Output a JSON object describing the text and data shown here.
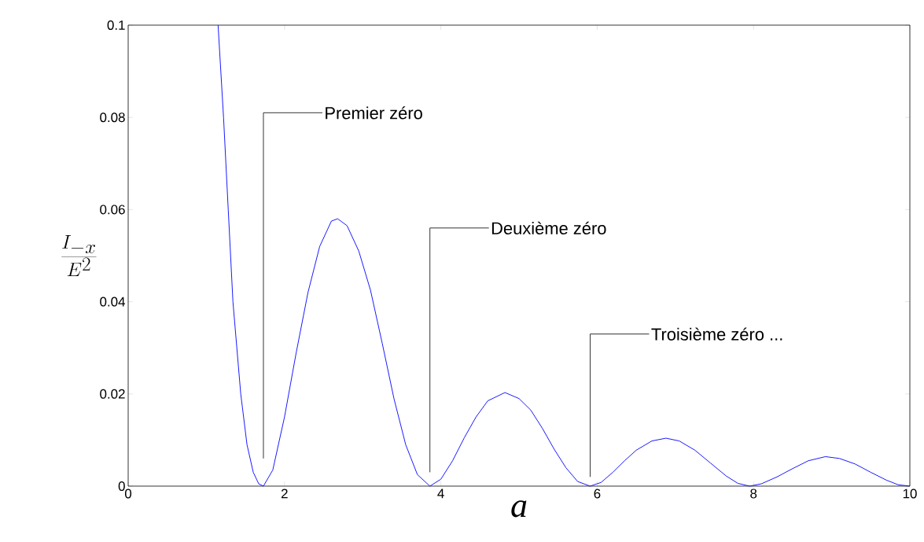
{
  "chart_data": {
    "type": "line",
    "xlabel": "a",
    "ylabel": "\\frac{I_{-x}}{E^{2}}",
    "x": [
      1.15,
      1.22,
      1.28,
      1.34,
      1.44,
      1.52,
      1.6,
      1.67,
      1.73,
      1.85,
      2.0,
      2.15,
      2.3,
      2.45,
      2.6,
      2.68,
      2.8,
      2.95,
      3.1,
      3.25,
      3.4,
      3.55,
      3.7,
      3.86,
      4.0,
      4.15,
      4.3,
      4.45,
      4.6,
      4.82,
      5.0,
      5.15,
      5.3,
      5.45,
      5.6,
      5.75,
      5.91,
      6.05,
      6.2,
      6.35,
      6.5,
      6.7,
      6.88,
      7.05,
      7.25,
      7.45,
      7.65,
      7.8,
      7.95,
      8.1,
      8.3,
      8.5,
      8.7,
      8.92,
      9.1,
      9.3,
      9.5,
      9.7,
      9.85,
      10
    ],
    "series": [
      {
        "color": "#0000ff",
        "values": [
          0.1,
          0.08,
          0.06,
          0.04,
          0.02,
          0.009,
          0.003,
          0.0005,
          0,
          0.0035,
          0.015,
          0.029,
          0.042,
          0.052,
          0.0575,
          0.058,
          0.0565,
          0.051,
          0.0425,
          0.031,
          0.019,
          0.009,
          0.0025,
          0,
          0.0015,
          0.0055,
          0.0105,
          0.015,
          0.0185,
          0.0203,
          0.019,
          0.0165,
          0.0125,
          0.008,
          0.004,
          0.001,
          0,
          0.0008,
          0.003,
          0.0055,
          0.0078,
          0.0098,
          0.0104,
          0.0098,
          0.0078,
          0.005,
          0.0022,
          0.0006,
          0,
          0.0005,
          0.002,
          0.0038,
          0.0055,
          0.0064,
          0.006,
          0.0048,
          0.003,
          0.0013,
          0.0003,
          0
        ]
      }
    ],
    "xlim": [
      0,
      10
    ],
    "ylim": [
      0,
      0.1
    ],
    "xticks": [
      0,
      2,
      4,
      6,
      8,
      10
    ],
    "yticks": [
      0,
      0.02,
      0.04,
      0.06,
      0.08,
      0.1
    ],
    "grid": false,
    "legend": false,
    "marker": "none",
    "line_style": "solid",
    "annotations": [
      "Premier zéro",
      "Deuxième zéro",
      "Troisième zéro ..."
    ]
  }
}
